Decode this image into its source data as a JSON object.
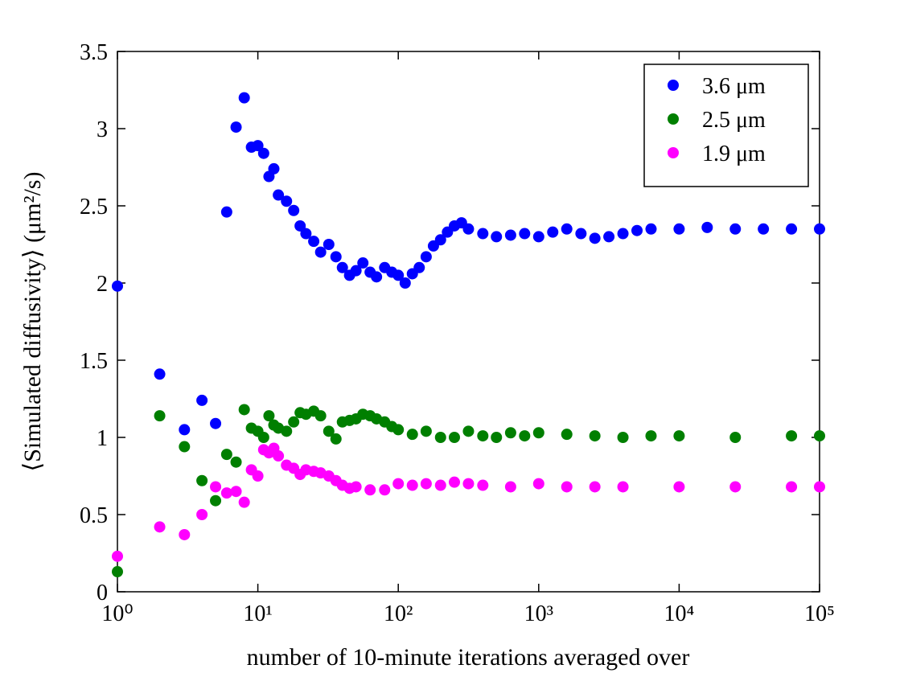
{
  "chart_data": {
    "type": "scatter",
    "xlabel": "number of 10-minute iterations averaged over",
    "ylabel": "⟨Simulated diffusivity⟩ (μm²/s)",
    "xscale": "log",
    "xlim": [
      1,
      100000
    ],
    "xticks": [
      {
        "value": 1,
        "label": "10⁰"
      },
      {
        "value": 10,
        "label": "10¹"
      },
      {
        "value": 100,
        "label": "10²"
      },
      {
        "value": 1000,
        "label": "10³"
      },
      {
        "value": 10000,
        "label": "10⁴"
      },
      {
        "value": 100000,
        "label": "10⁵"
      }
    ],
    "ylim": [
      0,
      3.5
    ],
    "yticks": [
      0,
      0.5,
      1,
      1.5,
      2,
      2.5,
      3,
      3.5
    ],
    "legend": "upper right",
    "series": [
      {
        "name": "3.6 μm",
        "color": "#0000ff",
        "x": [
          1,
          2,
          3,
          4,
          5,
          6,
          7,
          8,
          9,
          10,
          11,
          12,
          13,
          14,
          16,
          18,
          20,
          22,
          25,
          28,
          32,
          36,
          40,
          45,
          50,
          56,
          63,
          70,
          80,
          90,
          100,
          112,
          126,
          141,
          158,
          178,
          200,
          224,
          251,
          282,
          316,
          400,
          500,
          631,
          794,
          1000,
          1259,
          1585,
          2000,
          2512,
          3162,
          3981,
          5012,
          6310,
          10000,
          15849,
          25119,
          39811,
          63096,
          100000
        ],
        "values": [
          1.98,
          1.41,
          1.05,
          1.24,
          1.09,
          2.46,
          3.01,
          3.2,
          2.88,
          2.89,
          2.84,
          2.69,
          2.74,
          2.57,
          2.53,
          2.47,
          2.37,
          2.32,
          2.27,
          2.2,
          2.25,
          2.17,
          2.1,
          2.05,
          2.08,
          2.13,
          2.07,
          2.04,
          2.1,
          2.07,
          2.05,
          2.0,
          2.06,
          2.1,
          2.17,
          2.24,
          2.28,
          2.33,
          2.37,
          2.39,
          2.35,
          2.32,
          2.3,
          2.31,
          2.32,
          2.3,
          2.33,
          2.35,
          2.32,
          2.29,
          2.3,
          2.32,
          2.34,
          2.35,
          2.35,
          2.36,
          2.35,
          2.35,
          2.35,
          2.35
        ]
      },
      {
        "name": "2.5 μm",
        "color": "#007f00",
        "x": [
          1,
          2,
          3,
          4,
          5,
          6,
          7,
          8,
          9,
          10,
          11,
          12,
          13,
          14,
          16,
          18,
          20,
          22,
          25,
          28,
          32,
          36,
          40,
          45,
          50,
          56,
          63,
          70,
          80,
          90,
          100,
          126,
          158,
          200,
          251,
          316,
          400,
          500,
          631,
          794,
          1000,
          1585,
          2512,
          3981,
          6310,
          10000,
          25119,
          63096,
          100000
        ],
        "values": [
          0.13,
          1.14,
          0.94,
          0.72,
          0.59,
          0.89,
          0.84,
          1.18,
          1.06,
          1.04,
          1.0,
          1.14,
          1.08,
          1.06,
          1.04,
          1.1,
          1.16,
          1.15,
          1.17,
          1.14,
          1.04,
          0.99,
          1.1,
          1.11,
          1.12,
          1.15,
          1.14,
          1.12,
          1.1,
          1.07,
          1.05,
          1.02,
          1.04,
          1.0,
          1.0,
          1.04,
          1.01,
          1.0,
          1.03,
          1.01,
          1.03,
          1.02,
          1.01,
          1.0,
          1.01,
          1.01,
          1.0,
          1.01,
          1.01
        ]
      },
      {
        "name": "1.9 μm",
        "color": "#ff00ff",
        "x": [
          1,
          2,
          3,
          4,
          5,
          6,
          7,
          8,
          9,
          10,
          11,
          12,
          13,
          14,
          16,
          18,
          20,
          22,
          25,
          28,
          32,
          36,
          40,
          45,
          50,
          63,
          80,
          100,
          126,
          158,
          200,
          251,
          316,
          400,
          631,
          1000,
          1585,
          2512,
          3981,
          10000,
          25119,
          63096,
          100000
        ],
        "values": [
          0.23,
          0.42,
          0.37,
          0.5,
          0.68,
          0.64,
          0.65,
          0.58,
          0.79,
          0.75,
          0.92,
          0.9,
          0.93,
          0.88,
          0.82,
          0.8,
          0.76,
          0.79,
          0.78,
          0.77,
          0.75,
          0.72,
          0.69,
          0.67,
          0.68,
          0.66,
          0.66,
          0.7,
          0.69,
          0.7,
          0.69,
          0.71,
          0.7,
          0.69,
          0.68,
          0.7,
          0.68,
          0.68,
          0.68,
          0.68,
          0.68,
          0.68,
          0.68
        ]
      }
    ]
  }
}
